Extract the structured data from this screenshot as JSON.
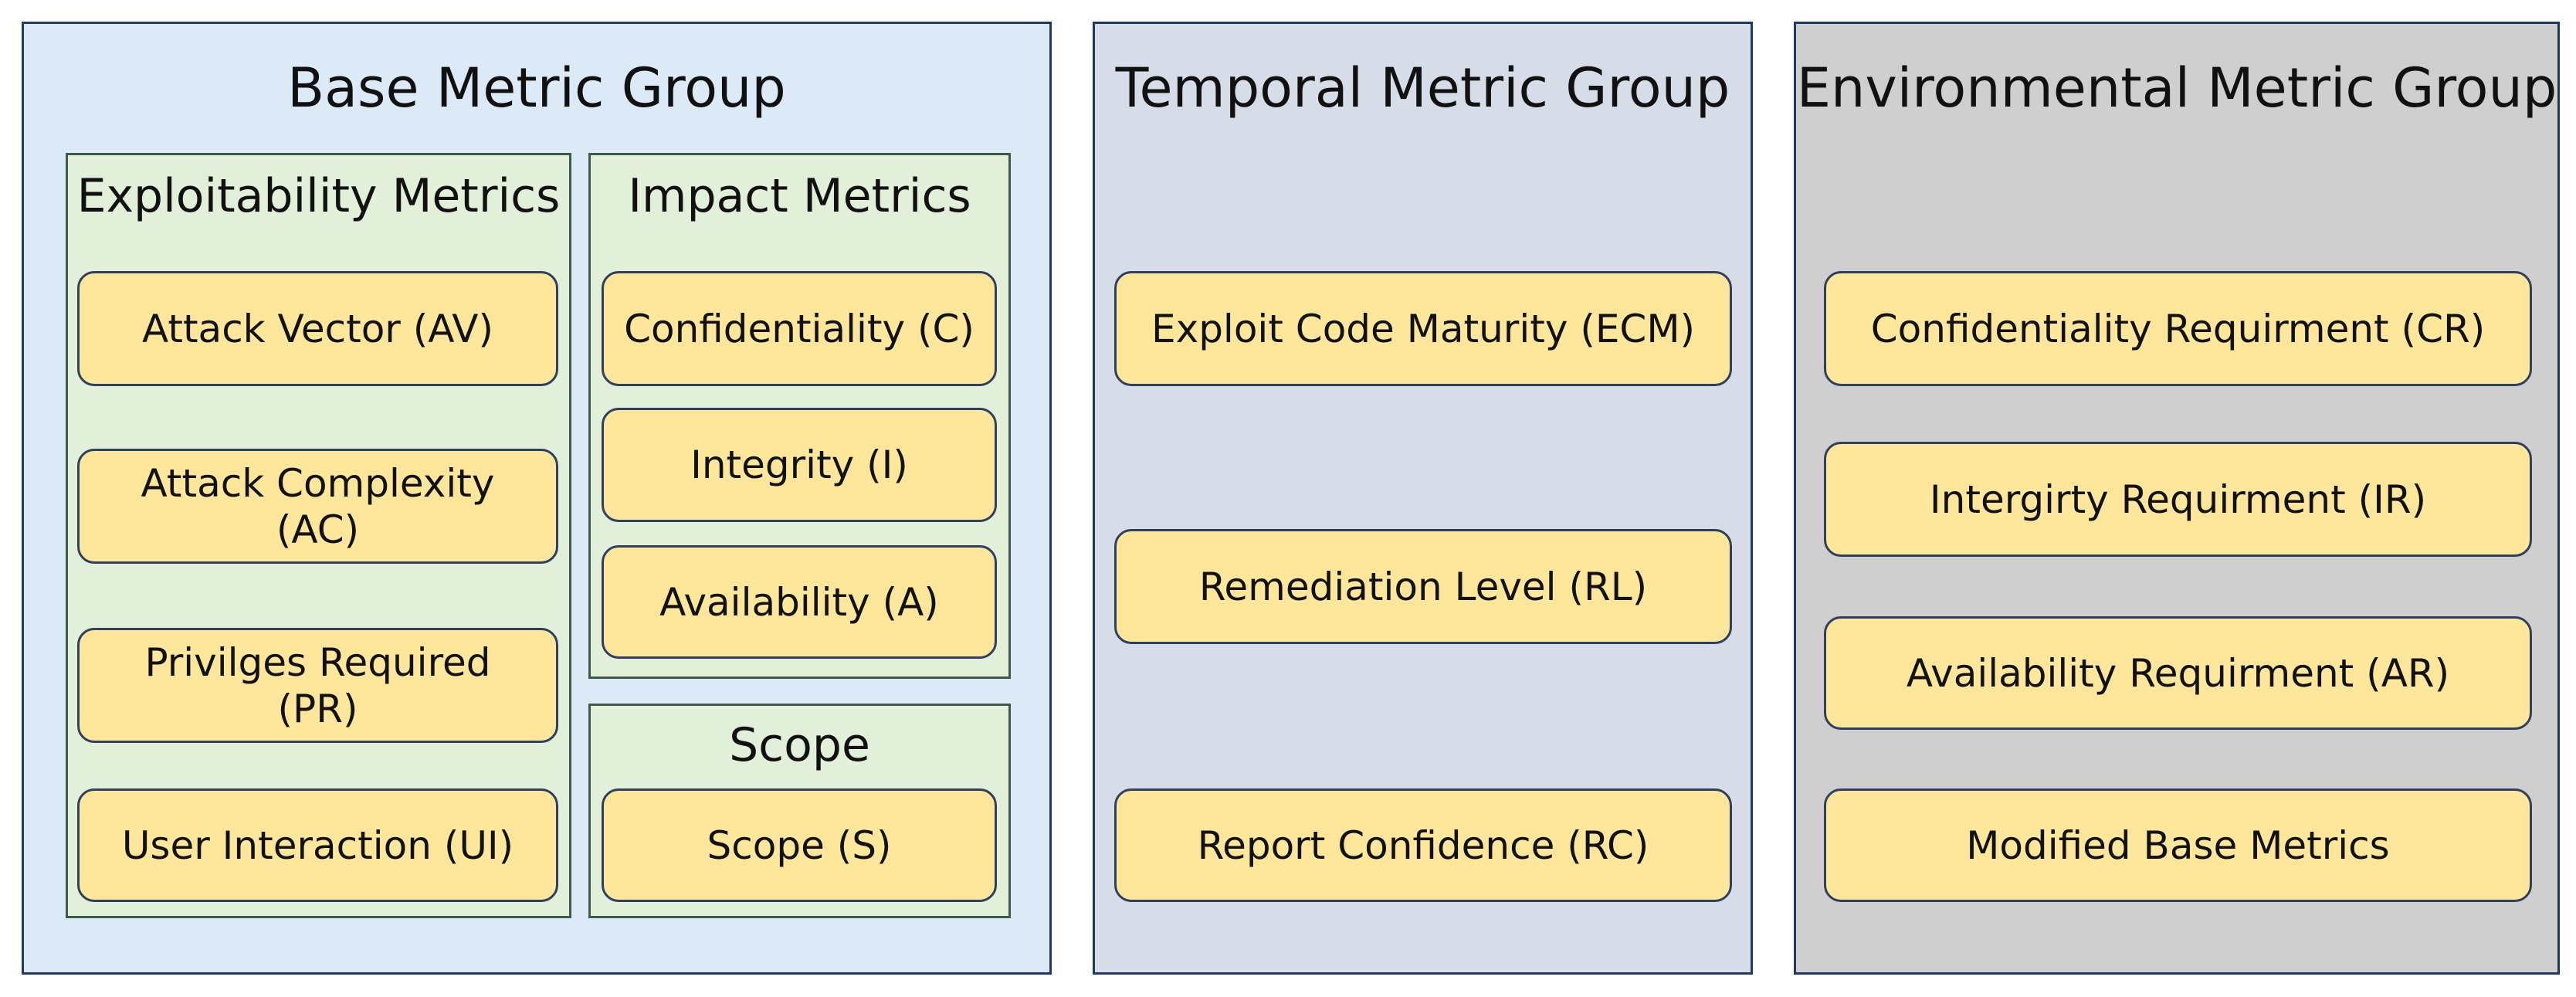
{
  "groups": [
    {
      "title": "Base Metric Group",
      "subgroups": [
        {
          "title": "Exploitability Metrics",
          "items": [
            "Attack Vector (AV)",
            "Attack Complexity (AC)",
            "Privilges Required (PR)",
            "User Interaction (UI)"
          ]
        },
        {
          "title": "Impact Metrics",
          "items": [
            "Confidentiality (C)",
            "Integrity (I)",
            "Availability (A)"
          ]
        },
        {
          "title": "Scope",
          "items": [
            "Scope (S)"
          ]
        }
      ]
    },
    {
      "title": "Temporal Metric Group",
      "items": [
        "Exploit Code Maturity (ECM)",
        "Remediation Level (RL)",
        "Report Confidence (RC)"
      ]
    },
    {
      "title": "Environmental Metric Group",
      "items": [
        "Confidentiality Requirment (CR)",
        "Intergirty Requirment (IR)",
        "Availability Requirment (AR)",
        "Modified Base Metrics"
      ]
    }
  ]
}
